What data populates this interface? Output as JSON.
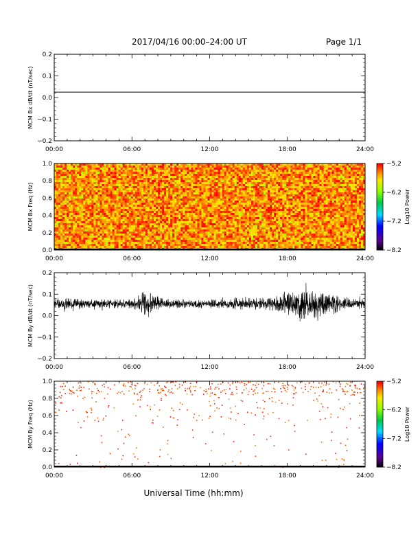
{
  "header": {
    "title": "2017/04/16  00:00–24:00 UT",
    "page": "Page 1/1"
  },
  "footer": {
    "xlabel": "Universal Time (hh:mm)"
  },
  "chart_data": [
    {
      "type": "line",
      "ylabel": "MCM Bx dB/dt (nT/sec)",
      "xlim": [
        0,
        24
      ],
      "ylim": [
        -0.2,
        0.2
      ],
      "x_ticklabels": [
        "00:00",
        "06:00",
        "12:00",
        "18:00",
        "24:00"
      ],
      "y_ticklabels": [
        "0.2",
        "0.1",
        "0.0",
        "−0.1",
        "−0.2"
      ],
      "series": [
        {
          "x": [
            0,
            24
          ],
          "y": [
            0.025,
            0.025
          ]
        }
      ]
    },
    {
      "type": "heatmap",
      "ylabel": "MCM Bx Freq (Hz)",
      "xlim": [
        0,
        24
      ],
      "ylim": [
        0,
        1.0
      ],
      "x_ticklabels": [
        "00:00",
        "06:00",
        "12:00",
        "18:00",
        "24:00"
      ],
      "y_ticklabels": [
        "1.0",
        "0.8",
        "0.6",
        "0.4",
        "0.2",
        "0.0"
      ],
      "power_range": [
        -8.2,
        -5.2
      ],
      "colorbar_label": "Log10 Power",
      "colorbar_ticklabels": [
        "−5.2",
        "−6.2",
        "−7.2",
        "−8.2"
      ],
      "description_levels": {
        "typical_power": [
          -5.8,
          -5.2
        ]
      }
    },
    {
      "type": "line",
      "ylabel": "MCM By dB/dt (nT/sec)",
      "xlim": [
        0,
        24
      ],
      "ylim": [
        -0.2,
        0.2
      ],
      "x_ticklabels": [
        "00:00",
        "06:00",
        "12:00",
        "18:00",
        "24:00"
      ],
      "y_ticklabels": [
        "0.2",
        "0.1",
        "0.0",
        "−0.1",
        "−0.2"
      ],
      "baseline": 0.055,
      "envelope": {
        "hours": [
          0,
          1,
          2,
          3,
          4,
          5,
          6,
          6.5,
          7,
          7.5,
          8,
          8.5,
          9,
          10,
          11,
          12,
          13,
          14,
          15,
          16,
          17,
          17.5,
          18,
          18.5,
          19,
          19.5,
          20,
          20.5,
          21,
          21.5,
          22,
          23,
          24
        ],
        "upper": [
          0.1,
          0.1,
          0.09,
          0.09,
          0.09,
          0.09,
          0.09,
          0.11,
          0.16,
          0.17,
          0.11,
          0.09,
          0.1,
          0.09,
          0.09,
          0.09,
          0.09,
          0.1,
          0.1,
          0.1,
          0.11,
          0.13,
          0.16,
          0.17,
          0.16,
          0.16,
          0.15,
          0.16,
          0.17,
          0.14,
          0.12,
          0.1,
          0.09
        ],
        "lower": [
          0.01,
          0.02,
          0.02,
          0.02,
          0.02,
          0.02,
          0.02,
          0.0,
          -0.03,
          -0.02,
          0.01,
          0.02,
          0.01,
          0.02,
          0.02,
          0.02,
          0.02,
          0.01,
          0.01,
          0.01,
          0.0,
          -0.02,
          -0.04,
          -0.05,
          -0.06,
          -0.06,
          -0.07,
          -0.08,
          -0.05,
          -0.03,
          0.0,
          0.02,
          0.02
        ]
      }
    },
    {
      "type": "heatmap",
      "ylabel": "MCM By Freq (Hz)",
      "xlim": [
        0,
        24
      ],
      "ylim": [
        0,
        1.0
      ],
      "x_ticklabels": [
        "00:00",
        "06:00",
        "12:00",
        "18:00",
        "24:00"
      ],
      "y_ticklabels": [
        "1.0",
        "0.8",
        "0.6",
        "0.4",
        "0.2",
        "0.0"
      ],
      "power_range": [
        -8.2,
        -5.2
      ],
      "colorbar_label": "Log10 Power",
      "colorbar_ticklabels": [
        "−5.2",
        "−6.2",
        "−7.2",
        "−8.2"
      ],
      "description_levels": {
        "typical_power": [
          -5.5,
          -5.2
        ]
      }
    }
  ]
}
